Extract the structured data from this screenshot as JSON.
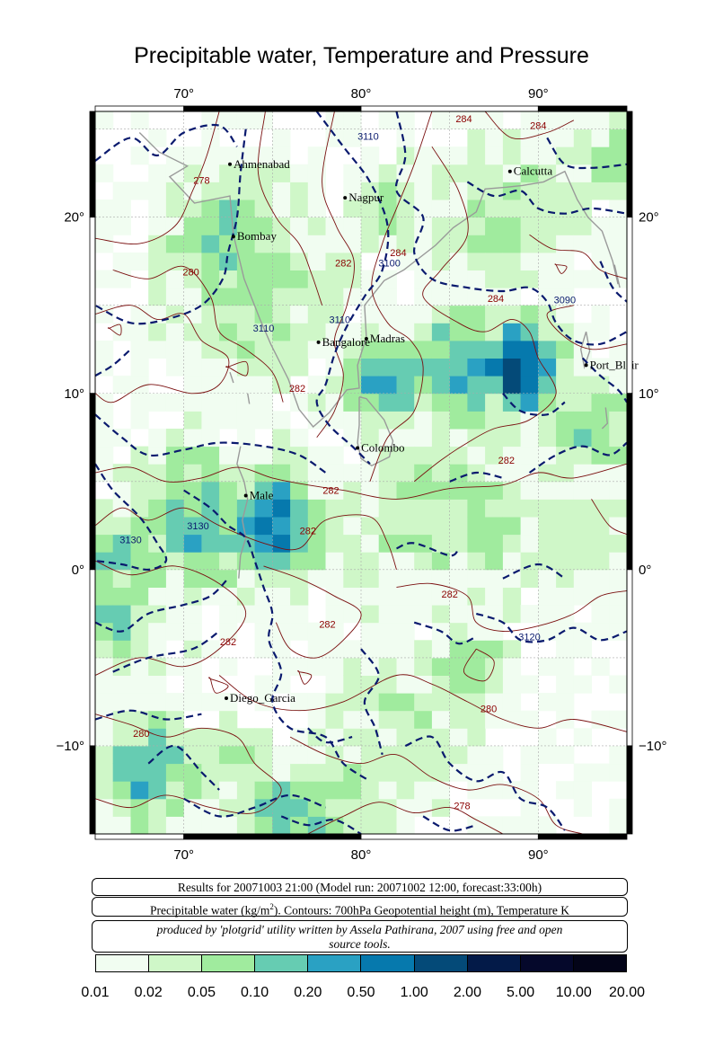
{
  "title": "Precipitable water, Temperature and Pressure",
  "map": {
    "lon_range": [
      65,
      95
    ],
    "lat_range": [
      -15,
      26
    ],
    "lon_ticks": [
      {
        "value": 70,
        "label": "70°"
      },
      {
        "value": 80,
        "label": "80°"
      },
      {
        "value": 90,
        "label": "90°"
      }
    ],
    "lat_ticks": [
      {
        "value": 20,
        "label": "20°"
      },
      {
        "value": 10,
        "label": "10°"
      },
      {
        "value": 0,
        "label": "0°"
      },
      {
        "value": -10,
        "label": "−10°"
      }
    ],
    "cities": [
      {
        "name": "Ahmenabad",
        "lon": 72.6,
        "lat": 23.0
      },
      {
        "name": "Nagpur",
        "lon": 79.1,
        "lat": 21.1
      },
      {
        "name": "Calcutta",
        "lon": 88.4,
        "lat": 22.6
      },
      {
        "name": "Bombay",
        "lon": 72.8,
        "lat": 18.9
      },
      {
        "name": "Bangalore",
        "lon": 77.6,
        "lat": 12.9
      },
      {
        "name": "Madras",
        "lon": 80.3,
        "lat": 13.1
      },
      {
        "name": "Port_Blair",
        "lon": 92.7,
        "lat": 11.6
      },
      {
        "name": "Colombo",
        "lon": 79.8,
        "lat": 6.9
      },
      {
        "name": "Male",
        "lon": 73.5,
        "lat": 4.2
      },
      {
        "name": "Diego_Garcia",
        "lon": 72.4,
        "lat": -7.3
      }
    ],
    "contour_labels": [
      {
        "text": "3110",
        "lon": 80.4,
        "lat": 24.4,
        "kind": "height"
      },
      {
        "text": "3110",
        "lon": 74.5,
        "lat": 13.5,
        "kind": "height"
      },
      {
        "text": "3110",
        "lon": 78.8,
        "lat": 14.0,
        "kind": "height"
      },
      {
        "text": "3100",
        "lon": 81.6,
        "lat": 17.2,
        "kind": "height"
      },
      {
        "text": "3090",
        "lon": 91.5,
        "lat": 15.1,
        "kind": "height"
      },
      {
        "text": "3130",
        "lon": 70.8,
        "lat": 2.3,
        "kind": "height"
      },
      {
        "text": "3130",
        "lon": 67.0,
        "lat": 1.5,
        "kind": "height"
      },
      {
        "text": "3120",
        "lon": 89.5,
        "lat": -4.0,
        "kind": "height"
      },
      {
        "text": "278",
        "lon": 71.0,
        "lat": 21.9,
        "kind": "temp"
      },
      {
        "text": "280",
        "lon": 70.4,
        "lat": 16.7,
        "kind": "temp"
      },
      {
        "text": "282",
        "lon": 79.0,
        "lat": 17.2,
        "kind": "temp"
      },
      {
        "text": "284",
        "lon": 82.1,
        "lat": 17.8,
        "kind": "temp"
      },
      {
        "text": "284",
        "lon": 87.6,
        "lat": 15.2,
        "kind": "temp"
      },
      {
        "text": "284",
        "lon": 90.0,
        "lat": 25.0,
        "kind": "temp"
      },
      {
        "text": "284",
        "lon": 85.8,
        "lat": 25.4,
        "kind": "temp"
      },
      {
        "text": "282",
        "lon": 76.4,
        "lat": 10.1,
        "kind": "temp"
      },
      {
        "text": "282",
        "lon": 78.3,
        "lat": 4.3,
        "kind": "temp"
      },
      {
        "text": "282",
        "lon": 88.2,
        "lat": 6.0,
        "kind": "temp"
      },
      {
        "text": "282",
        "lon": 77.0,
        "lat": 2.0,
        "kind": "temp"
      },
      {
        "text": "282",
        "lon": 85.0,
        "lat": -1.6,
        "kind": "temp"
      },
      {
        "text": "282",
        "lon": 78.1,
        "lat": -3.3,
        "kind": "temp"
      },
      {
        "text": "282",
        "lon": 72.5,
        "lat": -4.3,
        "kind": "temp"
      },
      {
        "text": "280",
        "lon": 87.2,
        "lat": -8.1,
        "kind": "temp"
      },
      {
        "text": "280",
        "lon": 67.6,
        "lat": -9.5,
        "kind": "temp"
      },
      {
        "text": "278",
        "lon": 85.7,
        "lat": -13.6,
        "kind": "temp"
      }
    ],
    "colors": {
      "height_contour": "#0a1a6e",
      "temp_contour": "#7a1010",
      "temp_label": "#8b0000",
      "coast": "#9a9a9a",
      "grid": "#aaaaaa"
    }
  },
  "info": {
    "results": "Results for 20071003 21:00 (Model run: 20071002 12:00, forecast:33:00h)",
    "description_prefix": "Precipitable water (kg/m",
    "description_sup": "2",
    "description_suffix": ").  Contours: 700hPa Geopotential height (m), Temperature K",
    "credit_line1": "produced by 'plotgrid' utility written by Assela Pathirana, 2007 using free and open",
    "credit_line2": "source tools."
  },
  "legend": {
    "labels": [
      "0.01",
      "0.02",
      "0.05",
      "0.10",
      "0.20",
      "0.50",
      "1.00",
      "2.00",
      "5.00",
      "10.00",
      "20.00"
    ],
    "colors": [
      "#f1fdf1",
      "#cff7c8",
      "#a0eb9e",
      "#66ccb2",
      "#2aa1c3",
      "#0679ad",
      "#044a78",
      "#031a48",
      "#05082b",
      "#030418"
    ]
  }
}
